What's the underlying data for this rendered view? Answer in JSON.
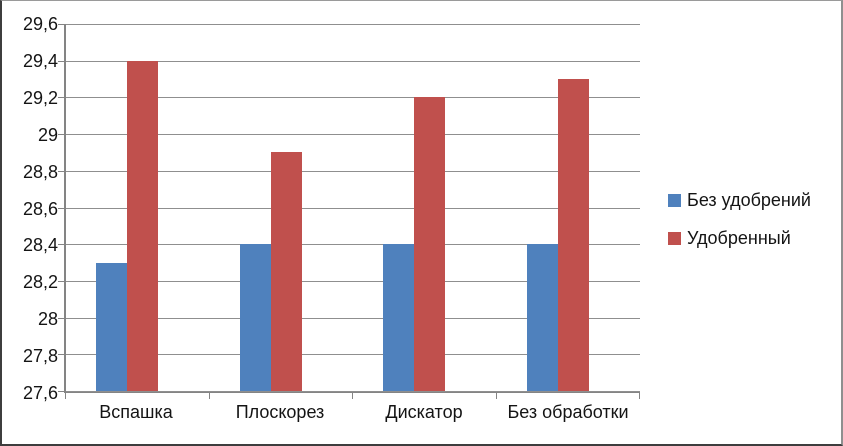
{
  "chart_data": {
    "type": "bar",
    "title": "",
    "xlabel": "",
    "ylabel": "",
    "categories": [
      "Вспашка",
      "Плоскорез",
      "Дискатор",
      "Без обработки"
    ],
    "series": [
      {
        "name": "Без удобрений",
        "color": "#4f81bd",
        "values": [
          28.3,
          28.4,
          28.4,
          28.4
        ]
      },
      {
        "name": "Удобренный",
        "color": "#c0504d",
        "values": [
          29.4,
          28.9,
          29.2,
          29.3
        ]
      }
    ],
    "ylim": [
      27.6,
      29.6
    ],
    "yticks": [
      {
        "value": 27.6,
        "label": "27,6"
      },
      {
        "value": 27.8,
        "label": "27,8"
      },
      {
        "value": 28.0,
        "label": "28"
      },
      {
        "value": 28.2,
        "label": "28,2"
      },
      {
        "value": 28.4,
        "label": "28,4"
      },
      {
        "value": 28.6,
        "label": "28,6"
      },
      {
        "value": 28.8,
        "label": "28,8"
      },
      {
        "value": 29.0,
        "label": "29"
      },
      {
        "value": 29.2,
        "label": "29,2"
      },
      {
        "value": 29.4,
        "label": "29,4"
      },
      {
        "value": 29.6,
        "label": "29,6"
      }
    ],
    "grid": true,
    "legend_position": "right",
    "decimal_separator": ",",
    "colors": {
      "grid": "#8f8f8f",
      "axis": "#848484",
      "text": "#141414",
      "background": "#ffffff"
    }
  }
}
